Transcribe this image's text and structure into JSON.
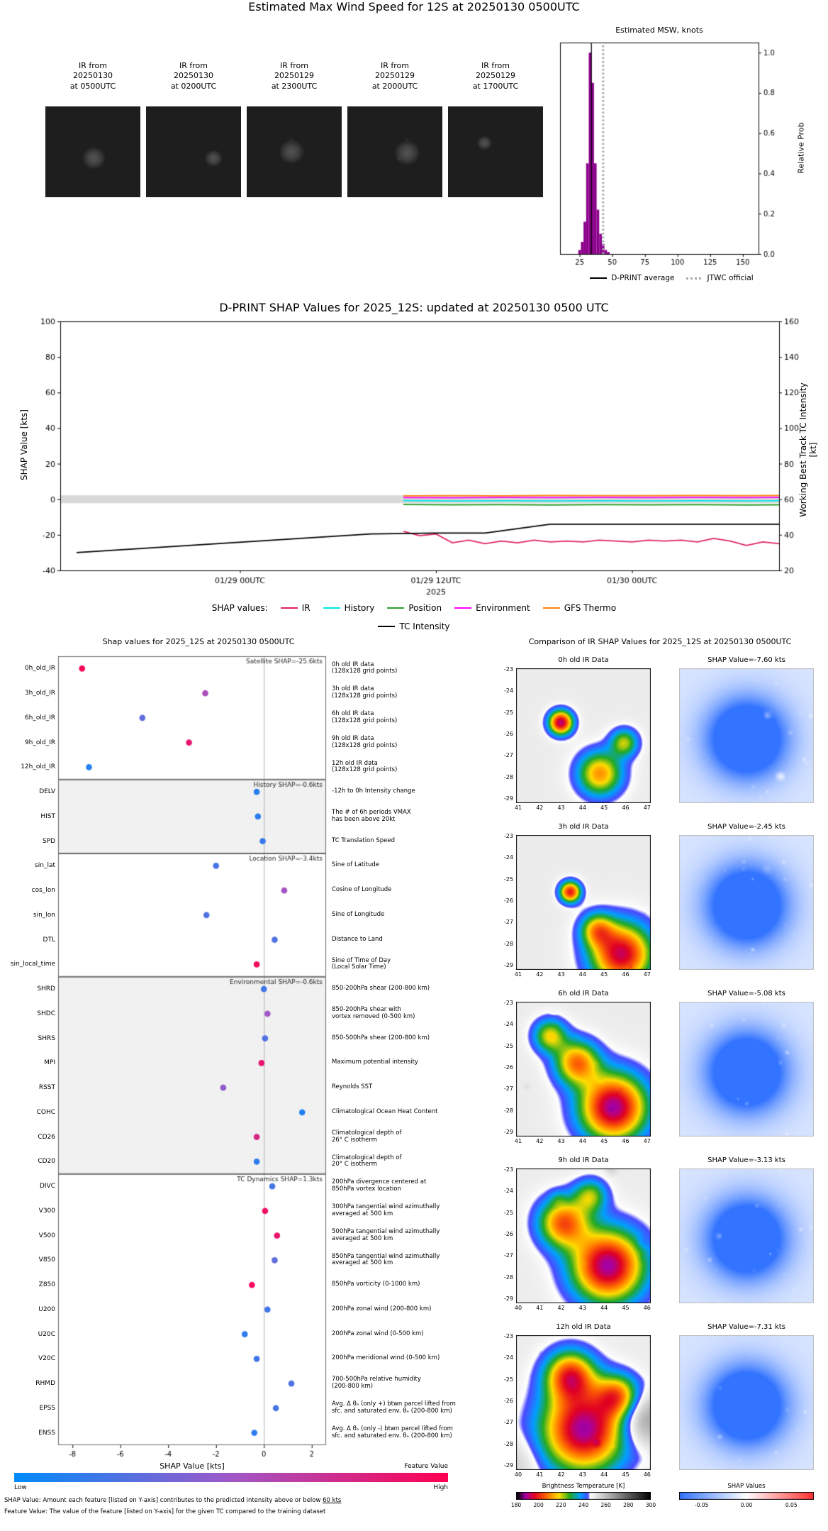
{
  "top": {
    "title": "Estimated Max Wind Speed for 12S at 20250130 0500UTC",
    "thumbnails": [
      {
        "label": "IR from\n20250130\nat 0500UTC"
      },
      {
        "label": "IR from\n20250130\nat 0200UTC"
      },
      {
        "label": "IR from\n20250129\nat 2300UTC"
      },
      {
        "label": "IR from\n20250129\nat 2000UTC"
      },
      {
        "label": "IR from\n20250129\nat 1700UTC"
      }
    ]
  },
  "chart_data": [
    {
      "id": "msw-histogram",
      "type": "bar",
      "title": "Estimated MSW, knots",
      "ylabel": "Relative Prob",
      "xlim": [
        10,
        162
      ],
      "ylim": [
        0,
        1.05
      ],
      "xticks": [
        25,
        50,
        75,
        100,
        125,
        150
      ],
      "yticks": [
        0.0,
        0.2,
        0.4,
        0.6,
        0.8,
        1.0
      ],
      "bar_color": "#8b008b",
      "bar_width_knots": 2,
      "bars": [
        {
          "x": 25,
          "h": 0.02
        },
        {
          "x": 27,
          "h": 0.06
        },
        {
          "x": 29,
          "h": 0.16
        },
        {
          "x": 31,
          "h": 0.45
        },
        {
          "x": 33,
          "h": 1.0
        },
        {
          "x": 35,
          "h": 0.85
        },
        {
          "x": 37,
          "h": 0.45
        },
        {
          "x": 39,
          "h": 0.22
        },
        {
          "x": 41,
          "h": 0.1
        },
        {
          "x": 43,
          "h": 0.05
        },
        {
          "x": 45,
          "h": 0.02
        },
        {
          "x": 47,
          "h": 0.01
        }
      ],
      "dprint_average": 34,
      "jtwc_official": 43,
      "legend": [
        {
          "label": "D-PRINT average",
          "color": "#000000",
          "style": "solid"
        },
        {
          "label": "JTWC official",
          "color": "#a9a9a9",
          "style": "dotted"
        }
      ]
    },
    {
      "id": "shap-timeseries",
      "type": "line",
      "title": "D-PRINT SHAP Values for 2025_12S: updated at 20250130 0500 UTC",
      "ylabel_left": "SHAP Value [kts]",
      "ylabel_right": "Working Best Track TC Intensity [kt]",
      "ylim_left": [
        -40,
        100
      ],
      "ylim_right": [
        20,
        160
      ],
      "yticks_left": [
        -40,
        -20,
        0,
        20,
        40,
        60,
        80,
        100
      ],
      "yticks_right": [
        20,
        40,
        60,
        80,
        100,
        120,
        140,
        160
      ],
      "xlim_hours": [
        1,
        45
      ],
      "xticks": [
        {
          "hour": 12,
          "label": "01/29 00UTC"
        },
        {
          "hour": 24,
          "label": "01/29 12UTC",
          "sublabel": "2025"
        },
        {
          "hour": 36,
          "label": "01/30 00UTC"
        }
      ],
      "legend_prefix": "SHAP values:",
      "zero_band": {
        "center": 0,
        "halfwidth": 2.2,
        "color": "#d9d9d9"
      },
      "series": [
        {
          "name": "IR",
          "color": "#e0245e",
          "points": [
            [
              22,
              -18
            ],
            [
              23,
              -20.5
            ],
            [
              24,
              -19.5
            ],
            [
              25,
              -24.5
            ],
            [
              26,
              -23
            ],
            [
              27,
              -25
            ],
            [
              28,
              -23.5
            ],
            [
              29,
              -24.5
            ],
            [
              30,
              -23
            ],
            [
              31,
              -24
            ],
            [
              32,
              -23.5
            ],
            [
              33,
              -24
            ],
            [
              34,
              -23
            ],
            [
              35,
              -23.5
            ],
            [
              36,
              -24
            ],
            [
              37,
              -23
            ],
            [
              38,
              -23.5
            ],
            [
              39,
              -23
            ],
            [
              40,
              -24
            ],
            [
              41,
              -22
            ],
            [
              42,
              -23.5
            ],
            [
              43,
              -26
            ],
            [
              44,
              -24
            ],
            [
              45,
              -25
            ]
          ]
        },
        {
          "name": "History",
          "color": "#00e5e5",
          "points": [
            [
              22,
              -0.8
            ],
            [
              25,
              -1.0
            ],
            [
              28,
              -0.9
            ],
            [
              31,
              -1.0
            ],
            [
              34,
              -0.9
            ],
            [
              37,
              -1.0
            ],
            [
              40,
              -0.9
            ],
            [
              43,
              -1.0
            ],
            [
              45,
              -0.9
            ]
          ]
        },
        {
          "name": "Position",
          "color": "#2ca02c",
          "points": [
            [
              22,
              -2.9
            ],
            [
              25,
              -3.1
            ],
            [
              28,
              -3.0
            ],
            [
              31,
              -3.2
            ],
            [
              34,
              -3.0
            ],
            [
              37,
              -3.1
            ],
            [
              40,
              -3.0
            ],
            [
              43,
              -3.2
            ],
            [
              45,
              -3.1
            ]
          ]
        },
        {
          "name": "Environment",
          "color": "#ff00ff",
          "points": [
            [
              22,
              0.9
            ],
            [
              25,
              0.8
            ],
            [
              28,
              1.0
            ],
            [
              31,
              0.9
            ],
            [
              34,
              1.0
            ],
            [
              37,
              0.9
            ],
            [
              40,
              1.0
            ],
            [
              43,
              0.9
            ],
            [
              45,
              1.0
            ]
          ]
        },
        {
          "name": "GFS Thermo",
          "color": "#ff7f0e",
          "points": [
            [
              22,
              1.9
            ],
            [
              25,
              2.0
            ],
            [
              28,
              1.9
            ],
            [
              31,
              2.1
            ],
            [
              34,
              2.0
            ],
            [
              37,
              2.0
            ],
            [
              40,
              2.1
            ],
            [
              43,
              2.0
            ],
            [
              45,
              2.1
            ]
          ]
        },
        {
          "name": "TC Intensity",
          "color": "#000000",
          "points": [
            [
              2,
              -30
            ],
            [
              8,
              -26.5
            ],
            [
              14,
              -23
            ],
            [
              20,
              -19.5
            ],
            [
              24,
              -19
            ],
            [
              27,
              -19
            ],
            [
              31,
              -14
            ],
            [
              45,
              -14
            ]
          ]
        }
      ]
    },
    {
      "id": "feature-shap",
      "type": "scatter",
      "title": "Shap values for 2025_12S at 20250130 0500UTC",
      "xlabel": "SHAP Value [kts]",
      "xlim": [
        -8.6,
        2.6
      ],
      "xticks": [
        -8,
        -6,
        -4,
        -2,
        0,
        2
      ],
      "colorbar": {
        "label": "Feature Value",
        "low": "Low",
        "high": "High",
        "colors": [
          "#008bfb",
          "#a058c8",
          "#ff0051"
        ]
      },
      "footnotes": {
        "shap_pre": "SHAP Value: Amount each feature [listed on Y-axis] contributes to the predicted intensity above or below ",
        "shap_underline": "60 kts",
        "feature": "Feature Value: The value of the feature [listed on Y-axis] for the given TC compared to the training dataset"
      },
      "groups": [
        {
          "label": "Satellite SHAP=-25.6kts",
          "features": [
            {
              "name": "0h_old_IR",
              "shap": -7.6,
              "feature_value": 0.97,
              "desc": "0h old IR data\n(128x128 grid points)"
            },
            {
              "name": "3h_old_IR",
              "shap": -2.45,
              "feature_value": 0.55,
              "desc": "3h old IR data\n(128x128 grid points)"
            },
            {
              "name": "6h_old_IR",
              "shap": -5.08,
              "feature_value": 0.3,
              "desc": "6h old IR data\n(128x128 grid points)"
            },
            {
              "name": "9h_old_IR",
              "shap": -3.13,
              "feature_value": 0.88,
              "desc": "9h old IR data\n(128x128 grid points)"
            },
            {
              "name": "12h_old_IR",
              "shap": -7.31,
              "feature_value": 0.12,
              "desc": "12h old IR data\n(128x128 grid points)"
            }
          ]
        },
        {
          "label": "History SHAP=-0.6kts",
          "features": [
            {
              "name": "DELV",
              "shap": -0.3,
              "feature_value": 0.12,
              "desc": "-12h to 0h Intensity change"
            },
            {
              "name": "HIST",
              "shap": -0.25,
              "feature_value": 0.15,
              "desc": "The # of 6h periods VMAX\nhas been above 20kt"
            },
            {
              "name": "SPD",
              "shap": -0.05,
              "feature_value": 0.18,
              "desc": "TC Translation Speed"
            }
          ]
        },
        {
          "label": "Location SHAP=-3.4kts",
          "features": [
            {
              "name": "sin_lat",
              "shap": -2.0,
              "feature_value": 0.22,
              "desc": "Sine of Latitude"
            },
            {
              "name": "cos_lon",
              "shap": 0.85,
              "feature_value": 0.52,
              "desc": "Cosine of Longitude"
            },
            {
              "name": "sin_lon",
              "shap": -2.4,
              "feature_value": 0.25,
              "desc": "Sine of Longitude"
            },
            {
              "name": "DTL",
              "shap": 0.45,
              "feature_value": 0.25,
              "desc": "Distance to Land"
            },
            {
              "name": "sin_local_time",
              "shap": -0.3,
              "feature_value": 0.95,
              "desc": "Sine of Time of Day\n(Local Solar Time)"
            }
          ]
        },
        {
          "label": "Environmental SHAP=-0.6kts",
          "features": [
            {
              "name": "SHRD",
              "shap": 0.0,
              "feature_value": 0.2,
              "desc": "850-200hPa shear (200-800 km)"
            },
            {
              "name": "SHDC",
              "shap": 0.15,
              "feature_value": 0.5,
              "desc": "850-200hPa shear with\nvortex removed (0-500 km)"
            },
            {
              "name": "SHRS",
              "shap": 0.05,
              "feature_value": 0.25,
              "desc": "850-500hPa shear (200-800 km)"
            },
            {
              "name": "MPI",
              "shap": -0.1,
              "feature_value": 0.88,
              "desc": "Maximum potential intensity"
            },
            {
              "name": "RSST",
              "shap": -1.7,
              "feature_value": 0.45,
              "desc": "Reynolds SST"
            },
            {
              "name": "COHC",
              "shap": 1.6,
              "feature_value": 0.1,
              "desc": "Climatological Ocean Heat Content"
            },
            {
              "name": "CD26",
              "shap": -0.3,
              "feature_value": 0.78,
              "desc": "Climatological depth of\n26° C isotherm"
            },
            {
              "name": "CD20",
              "shap": -0.3,
              "feature_value": 0.15,
              "desc": "Climatological depth of\n20° C isotherm"
            }
          ]
        },
        {
          "label": "TC Dynamics SHAP=1.3kts",
          "features": [
            {
              "name": "DIVC",
              "shap": 0.35,
              "feature_value": 0.22,
              "desc": "200hPa divergence centered at\n850hPa vortex location"
            },
            {
              "name": "V300",
              "shap": 0.05,
              "feature_value": 0.92,
              "desc": "300hPa tangential wind azimuthally\naveraged at 500 km"
            },
            {
              "name": "V500",
              "shap": 0.55,
              "feature_value": 0.9,
              "desc": "500hPa tangential wind azimuthally\naveraged at 500 km"
            },
            {
              "name": "V850",
              "shap": 0.45,
              "feature_value": 0.3,
              "desc": "850hPa tangential wind azimuthally\naveraged at 500 km"
            },
            {
              "name": "Z850",
              "shap": -0.5,
              "feature_value": 0.95,
              "desc": "850hPa vorticity (0-1000 km)"
            },
            {
              "name": "U200",
              "shap": 0.15,
              "feature_value": 0.2,
              "desc": "200hPa zonal wind (200-800 km)"
            },
            {
              "name": "U20C",
              "shap": -0.8,
              "feature_value": 0.15,
              "desc": "200hPa zonal wind (0-500 km)"
            },
            {
              "name": "V20C",
              "shap": -0.3,
              "feature_value": 0.2,
              "desc": "200hPa meridional wind (0-500 km)"
            },
            {
              "name": "RHMD",
              "shap": 1.15,
              "feature_value": 0.25,
              "desc": "700-500hPa relative humidity\n(200-800 km)"
            },
            {
              "name": "EPSS",
              "shap": 0.5,
              "feature_value": 0.22,
              "desc": "Avg. Δ θₑ (only +) btwn parcel lifted from\nsfc. and saturated env. θₑ (200-800 km)"
            },
            {
              "name": "ENSS",
              "shap": -0.4,
              "feature_value": 0.15,
              "desc": "Avg. Δ θₑ (only -) btwn parcel lifted from\nsfc. and saturated env. θₑ (200-800 km)"
            }
          ]
        }
      ]
    },
    {
      "id": "ir-shap-comparison",
      "type": "heatmap",
      "title": "Comparison of IR SHAP Values for 2025_12S at 20250130 0500UTC",
      "rows": [
        {
          "ir_title": "0h old IR Data",
          "shap_title": "SHAP Value=-7.60 kts",
          "xticks": [
            41,
            42,
            43,
            44,
            45,
            46,
            47
          ],
          "yticks": [
            -23,
            -24,
            -25,
            -26,
            -27,
            -28,
            -29
          ]
        },
        {
          "ir_title": "3h old IR Data",
          "shap_title": "SHAP Value=-2.45 kts",
          "xticks": [
            41,
            42,
            43,
            44,
            45,
            46,
            47
          ],
          "yticks": [
            -23,
            -24,
            -25,
            -26,
            -27,
            -28,
            -29
          ]
        },
        {
          "ir_title": "6h old IR Data",
          "shap_title": "SHAP Value=-5.08 kts",
          "xticks": [
            41,
            42,
            43,
            44,
            45,
            46,
            47
          ],
          "yticks": [
            -23,
            -24,
            -25,
            -26,
            -27,
            -28,
            -29
          ]
        },
        {
          "ir_title": "9h old IR Data",
          "shap_title": "SHAP Value=-3.13 kts",
          "xticks": [
            40,
            41,
            42,
            43,
            44,
            45,
            46
          ],
          "yticks": [
            -23,
            -24,
            -25,
            -26,
            -27,
            -28,
            -29
          ]
        },
        {
          "ir_title": "12h old IR Data",
          "shap_title": "SHAP Value=-7.31 kts",
          "xticks": [
            40,
            41,
            42,
            43,
            44,
            45,
            46
          ],
          "yticks": [
            -23,
            -24,
            -25,
            -26,
            -27,
            -28,
            -29
          ]
        }
      ],
      "colorbars": {
        "bt": {
          "label": "Brightness Temperature [K]",
          "ticks": [
            180,
            200,
            220,
            240,
            260,
            280,
            300
          ],
          "range": [
            180,
            300
          ]
        },
        "shap": {
          "label": "SHAP Values",
          "ticks": [
            "-0.05",
            "0.00",
            "0.05"
          ],
          "range": [
            -0.075,
            0.075
          ]
        }
      }
    }
  ]
}
